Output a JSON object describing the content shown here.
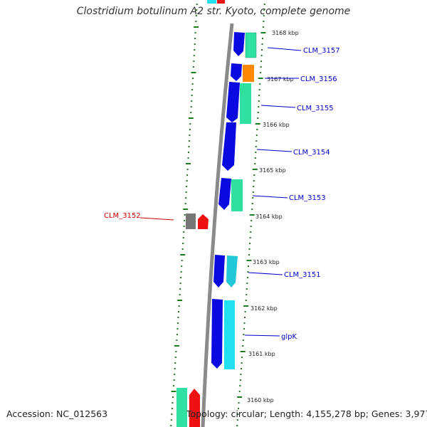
{
  "title": "Clostridium botulinum A2 str. Kyoto, complete genome",
  "accession": "Accession: NC_012563",
  "topology": "Topology: circular; Length: 4,155,278 bp; Genes: 3,977",
  "colors": {
    "backbone": "#8a8a8a",
    "tick": "#1b7d1b",
    "forward_gene": "#0a0ae0",
    "reverse_gene": "#ee1111",
    "gray_gene": "#777777",
    "teal_gene": "#30e0a0",
    "cyan_gene": "#22e0f0",
    "orange_gene": "#ff8800",
    "label_blue": "#0000cc",
    "label_red": "#cc0000"
  },
  "kbp_ticks": [
    "3168 kbp",
    "3167 kbp",
    "3166 kbp",
    "3165 kbp",
    "3164 kbp",
    "3163 kbp",
    "3162 kbp",
    "3161 kbp",
    "3160 kbp"
  ],
  "gene_labels": [
    "CLM_3157",
    "CLM_3156",
    "CLM_3155",
    "CLM_3154",
    "CLM_3153",
    "CLM_3152",
    "CLM_3151",
    "glpK"
  ]
}
